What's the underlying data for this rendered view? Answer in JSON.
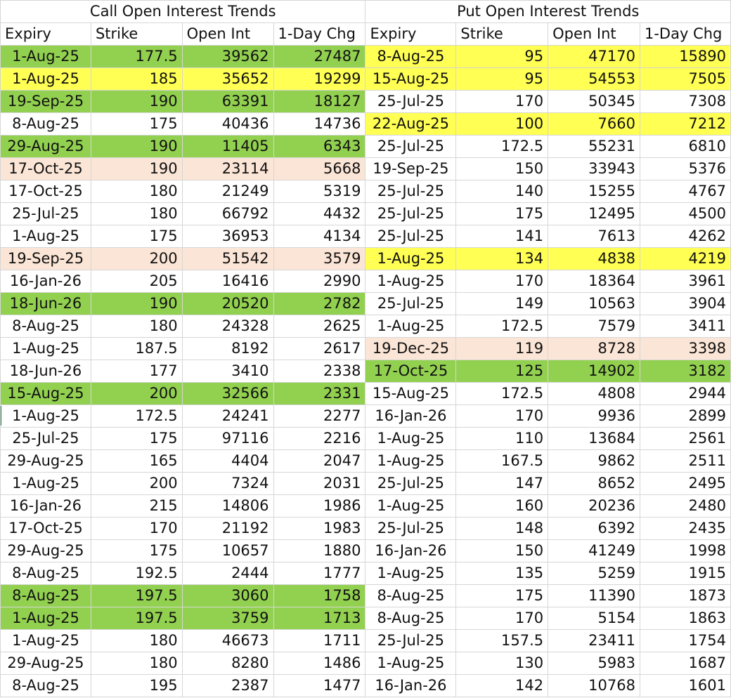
{
  "call": {
    "title": "Call Open Interest Trends",
    "headers": [
      "Expiry",
      "Strike",
      "Open Int",
      "1-Day Chg"
    ],
    "rows": [
      {
        "cells": [
          "1-Aug-25",
          "177.5",
          "39562",
          "27487"
        ],
        "hl": "green"
      },
      {
        "cells": [
          "1-Aug-25",
          "185",
          "35652",
          "19299"
        ],
        "hl": "yellow"
      },
      {
        "cells": [
          "19-Sep-25",
          "190",
          "63391",
          "18127"
        ],
        "hl": "green"
      },
      {
        "cells": [
          "8-Aug-25",
          "175",
          "40436",
          "14736"
        ],
        "hl": ""
      },
      {
        "cells": [
          "29-Aug-25",
          "190",
          "11405",
          "6343"
        ],
        "hl": "green"
      },
      {
        "cells": [
          "17-Oct-25",
          "190",
          "23114",
          "5668"
        ],
        "hl": "peach"
      },
      {
        "cells": [
          "17-Oct-25",
          "180",
          "21249",
          "5319"
        ],
        "hl": ""
      },
      {
        "cells": [
          "25-Jul-25",
          "180",
          "66792",
          "4432"
        ],
        "hl": ""
      },
      {
        "cells": [
          "1-Aug-25",
          "175",
          "36953",
          "4134"
        ],
        "hl": ""
      },
      {
        "cells": [
          "19-Sep-25",
          "200",
          "51542",
          "3579"
        ],
        "hl": "peach"
      },
      {
        "cells": [
          "16-Jan-26",
          "205",
          "16416",
          "2990"
        ],
        "hl": ""
      },
      {
        "cells": [
          "18-Jun-26",
          "190",
          "20520",
          "2782"
        ],
        "hl": "green"
      },
      {
        "cells": [
          "8-Aug-25",
          "180",
          "24328",
          "2625"
        ],
        "hl": ""
      },
      {
        "cells": [
          "1-Aug-25",
          "187.5",
          "8192",
          "2617"
        ],
        "hl": ""
      },
      {
        "cells": [
          "18-Jun-26",
          "177",
          "3410",
          "2338"
        ],
        "hl": ""
      },
      {
        "cells": [
          "15-Aug-25",
          "200",
          "32566",
          "2331"
        ],
        "hl": "green"
      },
      {
        "cells": [
          "1-Aug-25",
          "172.5",
          "24241",
          "2277"
        ],
        "hl": ""
      },
      {
        "cells": [
          "25-Jul-25",
          "175",
          "97116",
          "2216"
        ],
        "hl": ""
      },
      {
        "cells": [
          "29-Aug-25",
          "165",
          "4404",
          "2047"
        ],
        "hl": ""
      },
      {
        "cells": [
          "1-Aug-25",
          "200",
          "7324",
          "2031"
        ],
        "hl": ""
      },
      {
        "cells": [
          "16-Jan-26",
          "215",
          "14806",
          "1986"
        ],
        "hl": ""
      },
      {
        "cells": [
          "17-Oct-25",
          "170",
          "21192",
          "1983"
        ],
        "hl": ""
      },
      {
        "cells": [
          "29-Aug-25",
          "175",
          "10657",
          "1880"
        ],
        "hl": ""
      },
      {
        "cells": [
          "8-Aug-25",
          "192.5",
          "2444",
          "1777"
        ],
        "hl": ""
      },
      {
        "cells": [
          "8-Aug-25",
          "197.5",
          "3060",
          "1758"
        ],
        "hl": "green"
      },
      {
        "cells": [
          "1-Aug-25",
          "197.5",
          "3759",
          "1713"
        ],
        "hl": "green"
      },
      {
        "cells": [
          "1-Aug-25",
          "180",
          "46673",
          "1711"
        ],
        "hl": ""
      },
      {
        "cells": [
          "29-Aug-25",
          "180",
          "8280",
          "1486"
        ],
        "hl": ""
      },
      {
        "cells": [
          "8-Aug-25",
          "195",
          "2387",
          "1477"
        ],
        "hl": ""
      }
    ]
  },
  "put": {
    "title": "Put Open Interest Trends",
    "headers": [
      "Expiry",
      "Strike",
      "Open Int",
      "1-Day Chg"
    ],
    "rows": [
      {
        "cells": [
          "8-Aug-25",
          "95",
          "47170",
          "15890"
        ],
        "hl": "yellow"
      },
      {
        "cells": [
          "15-Aug-25",
          "95",
          "54553",
          "7505"
        ],
        "hl": "yellow"
      },
      {
        "cells": [
          "25-Jul-25",
          "170",
          "50345",
          "7308"
        ],
        "hl": ""
      },
      {
        "cells": [
          "22-Aug-25",
          "100",
          "7660",
          "7212"
        ],
        "hl": "yellow"
      },
      {
        "cells": [
          "25-Jul-25",
          "172.5",
          "55231",
          "6810"
        ],
        "hl": ""
      },
      {
        "cells": [
          "19-Sep-25",
          "150",
          "33943",
          "5376"
        ],
        "hl": ""
      },
      {
        "cells": [
          "25-Jul-25",
          "140",
          "15255",
          "4767"
        ],
        "hl": ""
      },
      {
        "cells": [
          "25-Jul-25",
          "175",
          "12495",
          "4500"
        ],
        "hl": ""
      },
      {
        "cells": [
          "25-Jul-25",
          "141",
          "7613",
          "4262"
        ],
        "hl": ""
      },
      {
        "cells": [
          "1-Aug-25",
          "134",
          "4838",
          "4219"
        ],
        "hl": "yellow"
      },
      {
        "cells": [
          "1-Aug-25",
          "170",
          "18364",
          "3961"
        ],
        "hl": ""
      },
      {
        "cells": [
          "25-Jul-25",
          "149",
          "10563",
          "3904"
        ],
        "hl": ""
      },
      {
        "cells": [
          "1-Aug-25",
          "172.5",
          "7579",
          "3411"
        ],
        "hl": ""
      },
      {
        "cells": [
          "19-Dec-25",
          "119",
          "8728",
          "3398"
        ],
        "hl": "peach"
      },
      {
        "cells": [
          "17-Oct-25",
          "125",
          "14902",
          "3182"
        ],
        "hl": "green"
      },
      {
        "cells": [
          "15-Aug-25",
          "172.5",
          "4808",
          "2944"
        ],
        "hl": ""
      },
      {
        "cells": [
          "16-Jan-26",
          "170",
          "9936",
          "2899"
        ],
        "hl": ""
      },
      {
        "cells": [
          "1-Aug-25",
          "110",
          "13684",
          "2561"
        ],
        "hl": ""
      },
      {
        "cells": [
          "1-Aug-25",
          "167.5",
          "9862",
          "2511"
        ],
        "hl": ""
      },
      {
        "cells": [
          "25-Jul-25",
          "147",
          "8652",
          "2495"
        ],
        "hl": ""
      },
      {
        "cells": [
          "1-Aug-25",
          "160",
          "20236",
          "2480"
        ],
        "hl": ""
      },
      {
        "cells": [
          "25-Jul-25",
          "148",
          "6392",
          "2435"
        ],
        "hl": ""
      },
      {
        "cells": [
          "16-Jan-26",
          "150",
          "41249",
          "1998"
        ],
        "hl": ""
      },
      {
        "cells": [
          "1-Aug-25",
          "135",
          "5259",
          "1915"
        ],
        "hl": ""
      },
      {
        "cells": [
          "8-Aug-25",
          "175",
          "11390",
          "1873"
        ],
        "hl": ""
      },
      {
        "cells": [
          "8-Aug-25",
          "170",
          "5154",
          "1863"
        ],
        "hl": ""
      },
      {
        "cells": [
          "25-Jul-25",
          "157.5",
          "23411",
          "1754"
        ],
        "hl": ""
      },
      {
        "cells": [
          "1-Aug-25",
          "130",
          "5983",
          "1687"
        ],
        "hl": ""
      },
      {
        "cells": [
          "16-Jan-26",
          "142",
          "10768",
          "1601"
        ],
        "hl": ""
      }
    ]
  },
  "colors": {
    "green": "#92d050",
    "yellow": "#ffff54",
    "peach": "#fbe5d6",
    "gridline": "#d6d6d6"
  }
}
